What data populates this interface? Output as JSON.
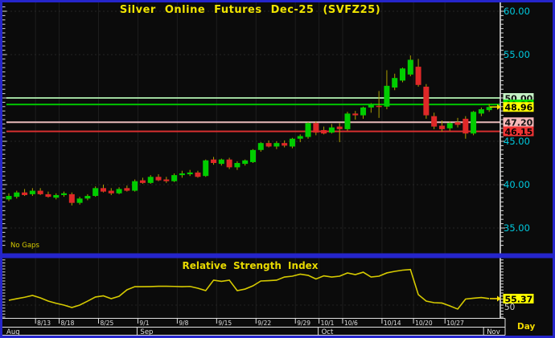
{
  "window": {
    "frame_color": "#2525cb",
    "background": "#0b0b0b",
    "axis_text_color": "#00c9de",
    "grid_color": "#262626"
  },
  "chart_data": [
    {
      "type": "candlestick",
      "title": "Silver Online Futures Dec-25 (SVFZ25)",
      "annotation": "No Gaps",
      "ylabel": "price",
      "ylim": [
        32.5,
        61
      ],
      "grid": true,
      "y_ticks": [
        {
          "value": 60,
          "label": "60.00"
        },
        {
          "value": 55,
          "label": "55.00"
        },
        {
          "value": 45,
          "label": "45.00"
        },
        {
          "value": 40,
          "label": "40.00"
        },
        {
          "value": 35,
          "label": "35.00"
        }
      ],
      "grid_values": [
        35,
        40,
        45,
        50,
        55,
        60
      ],
      "up_color": "#00cd00",
      "down_color": "#df2828",
      "wick_color": "#ab9f00",
      "price_lines": [
        {
          "value": 50.0,
          "label": "50.00",
          "line_color": "#9fd89f",
          "badge_bg": "#c6f2c6",
          "badge_fg": "#111111"
        },
        {
          "value": 49.25,
          "label": "49.25",
          "line_color": "#00c400",
          "badge_bg": "#00e400",
          "badge_fg": "#000000"
        },
        {
          "value": 47.2,
          "label": "47.20",
          "line_color": "#e7b9b9",
          "badge_bg": "#f6baba",
          "badge_fg": "#111111"
        },
        {
          "value": 46.15,
          "label": "46.15",
          "line_color": "#d62f2f",
          "badge_bg": "#ef3434",
          "badge_fg": "#000000"
        }
      ],
      "current_price": {
        "value": 48.96,
        "label": "48.96",
        "badge_bg": "#ffff00",
        "badge_fg": "#000000",
        "arrow_color": "#ffe400"
      },
      "ohlc": [
        [
          38.3,
          39.0,
          38.1,
          38.7
        ],
        [
          38.6,
          39.3,
          38.4,
          39.1
        ],
        [
          39.1,
          39.5,
          38.7,
          38.8
        ],
        [
          38.9,
          39.6,
          38.7,
          39.3
        ],
        [
          39.3,
          39.6,
          38.8,
          38.9
        ],
        [
          38.9,
          39.2,
          38.5,
          38.6
        ],
        [
          38.5,
          39.0,
          38.3,
          38.8
        ],
        [
          38.8,
          39.2,
          38.6,
          39.0
        ],
        [
          38.9,
          39.1,
          37.6,
          37.9
        ],
        [
          37.9,
          38.6,
          37.7,
          38.4
        ],
        [
          38.4,
          38.9,
          38.2,
          38.7
        ],
        [
          38.7,
          39.8,
          38.6,
          39.6
        ],
        [
          39.6,
          40.0,
          39.1,
          39.2
        ],
        [
          39.3,
          39.6,
          38.8,
          39.0
        ],
        [
          39.0,
          39.7,
          38.9,
          39.5
        ],
        [
          39.6,
          39.9,
          39.2,
          39.3
        ],
        [
          39.3,
          40.6,
          39.2,
          40.4
        ],
        [
          40.5,
          40.8,
          40.1,
          40.2
        ],
        [
          40.2,
          41.1,
          40.1,
          40.9
        ],
        [
          40.9,
          41.2,
          40.4,
          40.5
        ],
        [
          40.6,
          40.9,
          40.2,
          40.4
        ],
        [
          40.4,
          41.3,
          40.3,
          41.1
        ],
        [
          41.1,
          41.6,
          40.8,
          41.3
        ],
        [
          41.2,
          41.7,
          41.0,
          41.4
        ],
        [
          41.4,
          41.6,
          40.8,
          40.9
        ],
        [
          41.0,
          42.9,
          40.9,
          42.8
        ],
        [
          42.9,
          43.2,
          42.3,
          42.5
        ],
        [
          42.4,
          43.0,
          42.2,
          42.9
        ],
        [
          42.9,
          43.1,
          41.8,
          42.0
        ],
        [
          42.0,
          42.7,
          41.7,
          42.5
        ],
        [
          42.4,
          42.9,
          42.2,
          42.8
        ],
        [
          42.6,
          44.1,
          42.5,
          44.0
        ],
        [
          44.0,
          44.9,
          43.8,
          44.8
        ],
        [
          44.8,
          45.1,
          44.3,
          44.4
        ],
        [
          44.4,
          45.0,
          44.1,
          44.8
        ],
        [
          44.8,
          45.1,
          44.3,
          44.5
        ],
        [
          44.4,
          45.4,
          44.2,
          45.3
        ],
        [
          45.3,
          45.8,
          44.9,
          45.6
        ],
        [
          45.5,
          47.2,
          45.3,
          47.1
        ],
        [
          47.1,
          47.3,
          45.7,
          46.0
        ],
        [
          46.3,
          46.7,
          45.8,
          45.9
        ],
        [
          46.0,
          47.0,
          45.9,
          46.6
        ],
        [
          46.7,
          47.1,
          44.9,
          46.4
        ],
        [
          46.4,
          48.4,
          46.2,
          48.2
        ],
        [
          48.2,
          48.5,
          47.5,
          48.0
        ],
        [
          48.0,
          49.0,
          47.6,
          48.9
        ],
        [
          48.9,
          49.4,
          48.3,
          49.3
        ],
        [
          49.1,
          50.8,
          47.7,
          49.0
        ],
        [
          49.0,
          53.2,
          48.7,
          51.4
        ],
        [
          51.2,
          52.8,
          50.9,
          52.3
        ],
        [
          52.0,
          53.5,
          51.8,
          53.4
        ],
        [
          52.7,
          54.9,
          52.5,
          54.4
        ],
        [
          53.6,
          54.5,
          51.3,
          51.5
        ],
        [
          51.3,
          51.6,
          47.6,
          48.0
        ],
        [
          47.9,
          48.3,
          46.4,
          46.7
        ],
        [
          46.8,
          47.4,
          46.1,
          46.4
        ],
        [
          46.5,
          47.3,
          46.2,
          47.1
        ],
        [
          47.2,
          47.7,
          46.6,
          46.9
        ],
        [
          47.6,
          47.9,
          45.3,
          45.9
        ],
        [
          45.9,
          48.5,
          45.7,
          48.4
        ],
        [
          48.2,
          48.9,
          47.9,
          48.7
        ],
        [
          48.6,
          49.3,
          48.4,
          48.96
        ]
      ]
    },
    {
      "type": "line",
      "title": "Relative Strength Index",
      "line_color": "#d6ca00",
      "ylim": [
        39,
        89
      ],
      "midline": {
        "value": 50,
        "label": "50"
      },
      "values": [
        54.0,
        55.3,
        56.5,
        58.0,
        56.0,
        53.3,
        51.5,
        50.0,
        48.0,
        50.0,
        53.3,
        56.7,
        57.7,
        55.3,
        57.3,
        62.7,
        65.3,
        65.3,
        65.4,
        65.6,
        65.6,
        65.5,
        65.3,
        65.5,
        64.0,
        62.0,
        70.7,
        69.7,
        70.7,
        62.0,
        63.3,
        66.0,
        70.0,
        70.3,
        70.7,
        73.3,
        74.0,
        75.7,
        74.7,
        71.7,
        74.3,
        73.3,
        74.0,
        76.7,
        75.3,
        77.3,
        73.3,
        74.0,
        76.7,
        78.0,
        79.0,
        79.5,
        58.7,
        53.3,
        52.0,
        51.7,
        49.3,
        46.7,
        55.0,
        55.7,
        56.3,
        55.37
      ],
      "last_value": {
        "value": 55.37,
        "label": "55.37",
        "badge_bg": "#ffff00",
        "badge_fg": "#000000",
        "arrow_color": "#ffe400"
      }
    }
  ],
  "x_axis": {
    "ticks": [
      {
        "i": 4,
        "label": "8/13"
      },
      {
        "i": 7,
        "label": "8/18"
      },
      {
        "i": 12,
        "label": "8/25"
      },
      {
        "i": 17,
        "label": "9/1"
      },
      {
        "i": 22,
        "label": "9/8"
      },
      {
        "i": 27,
        "label": "9/15"
      },
      {
        "i": 32,
        "label": "9/22"
      },
      {
        "i": 37,
        "label": "9/29"
      },
      {
        "i": 40,
        "label": "10/1"
      },
      {
        "i": 43,
        "label": "10/6"
      },
      {
        "i": 48,
        "label": "10/14"
      },
      {
        "i": 52,
        "label": "10/20"
      },
      {
        "i": 56,
        "label": "10/27"
      }
    ],
    "months": [
      {
        "label": "Aug",
        "i": 0
      },
      {
        "label": "Sep",
        "i": 17
      },
      {
        "label": "Oct",
        "i": 40
      },
      {
        "label": "Nov",
        "i": 61
      }
    ],
    "period_label": "Day"
  }
}
